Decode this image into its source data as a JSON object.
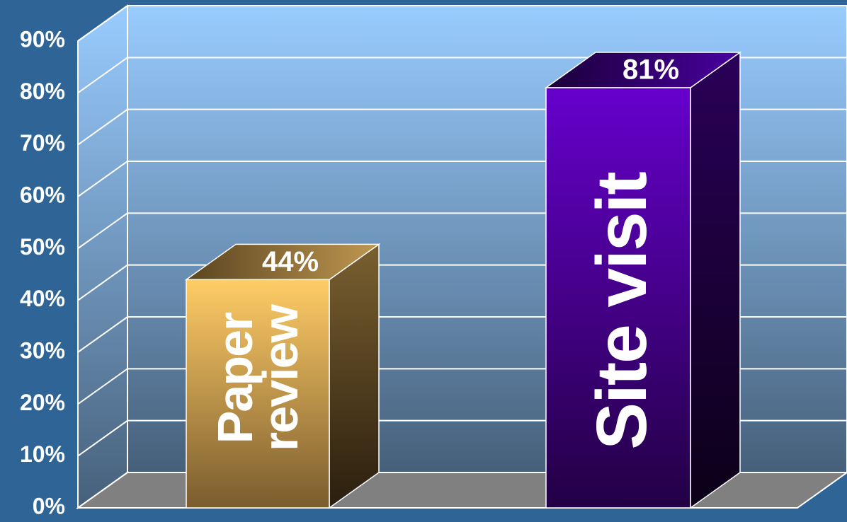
{
  "chart_data": {
    "type": "bar3d",
    "categories": [
      "Paper review",
      "Site visit"
    ],
    "values": [
      44,
      81
    ],
    "value_labels": [
      "44%",
      "81%"
    ],
    "colors": [
      "#ffcc66",
      "#6600cc"
    ],
    "ylim": [
      0,
      90
    ],
    "yticks": [
      {
        "value": 0,
        "label": "0%"
      },
      {
        "value": 10,
        "label": "10%"
      },
      {
        "value": 20,
        "label": "20%"
      },
      {
        "value": 30,
        "label": "30%"
      },
      {
        "value": 40,
        "label": "40%"
      },
      {
        "value": 50,
        "label": "50%"
      },
      {
        "value": 60,
        "label": "60%"
      },
      {
        "value": 70,
        "label": "70%"
      },
      {
        "value": 80,
        "label": "80%"
      },
      {
        "value": 90,
        "label": "90%"
      }
    ],
    "grid": true
  }
}
